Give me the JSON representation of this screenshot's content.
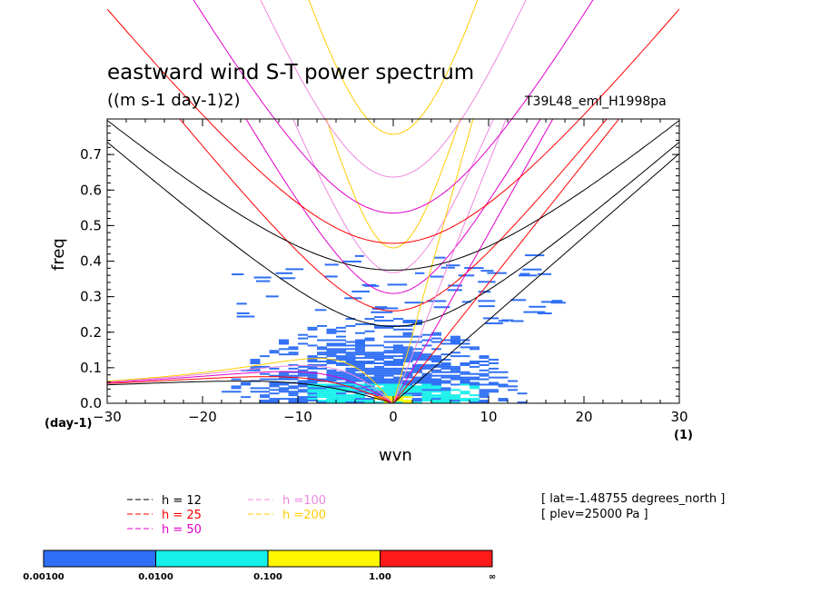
{
  "title": "eastward wind S-T power spectrum",
  "units_label": "((m s-1 day-1)2)",
  "run_name": "T39L48_eml_H1998pa",
  "info": [
    "[ lat=-1.48755 degrees_north ]",
    "[ plev=25000 Pa ]"
  ],
  "x_unit_left": "(day-1)",
  "x_unit_right": "(1)",
  "colorbar": {
    "colors": [
      "#2f6ff5",
      "#16f0ea",
      "#fff700",
      "#ff1a1a"
    ],
    "labels": [
      "0.00100",
      "0.0100",
      "0.100",
      "1.00",
      "∞"
    ]
  },
  "chart_data": {
    "type": "heatmap",
    "xlabel": "wvn",
    "ylabel": "freq",
    "xlim": [
      -30,
      30
    ],
    "ylim": [
      0,
      0.8
    ],
    "xticks": [
      -30,
      -20,
      -10,
      0,
      10,
      20,
      30
    ],
    "yticks": [
      0.0,
      0.1,
      0.2,
      0.3,
      0.4,
      0.5,
      0.6,
      0.7
    ],
    "ytick_labels": [
      "0.0",
      "0.1",
      "0.2",
      "0.3",
      "0.4",
      "0.5",
      "0.6",
      "0.7"
    ],
    "grid": false,
    "legend_placement": "bottom",
    "power_bands": [
      {
        "level": "0.00100-0.0100",
        "color": "#2f6ff5",
        "extent": "|wvn|<=17, freq<=0.37"
      },
      {
        "level": "0.0100-0.100",
        "color": "#16f0ea",
        "extent": "|wvn|<=9, freq<=0.06"
      },
      {
        "level": "0.100-1.00",
        "color": "#fff700",
        "extent": "|wvn|<=2, freq<=0.02"
      }
    ],
    "series": [
      {
        "name": "h = 12",
        "color": "#000000",
        "values": [
          12
        ]
      },
      {
        "name": "h = 25",
        "color": "#ff0000",
        "values": [
          25
        ]
      },
      {
        "name": "h = 50",
        "color": "#e000c8",
        "values": [
          50
        ]
      },
      {
        "name": "h =100",
        "color": "#ee88dd",
        "values": [
          100
        ]
      },
      {
        "name": "h =200",
        "color": "#ffcc00",
        "values": [
          200
        ]
      }
    ]
  }
}
